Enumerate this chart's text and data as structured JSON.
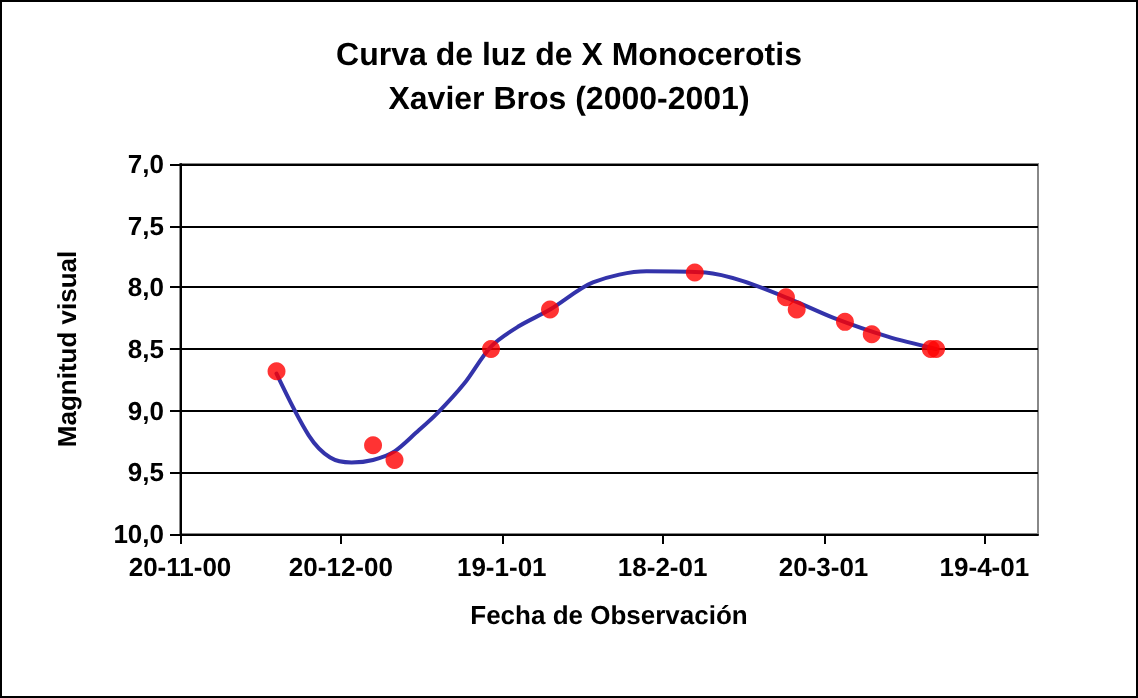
{
  "chart_data": {
    "type": "scatter",
    "title": "Curva de luz de X Monocerotis",
    "subtitle": "Xavier Bros (2000-2001)",
    "xlabel": "Fecha de Observación",
    "ylabel": "Magnitud visual",
    "xlim": [
      "2000-11-20",
      "2001-04-29"
    ],
    "xticks": [
      {
        "value": "2000-11-20",
        "label": "20-11-00"
      },
      {
        "value": "2000-12-20",
        "label": "20-12-00"
      },
      {
        "value": "2001-01-19",
        "label": "19-1-01"
      },
      {
        "value": "2001-02-18",
        "label": "18-2-01"
      },
      {
        "value": "2001-03-20",
        "label": "20-3-01"
      },
      {
        "value": "2001-04-19",
        "label": "19-4-01"
      }
    ],
    "ylim": [
      10,
      7
    ],
    "yticks": [
      {
        "value": 7,
        "label": "7,0"
      },
      {
        "value": 7.5,
        "label": "7,5"
      },
      {
        "value": 8,
        "label": "8,0"
      },
      {
        "value": 8.5,
        "label": "8,5"
      },
      {
        "value": 9,
        "label": "9,0"
      },
      {
        "value": 9.5,
        "label": "9,5"
      },
      {
        "value": 10,
        "label": "10,0"
      }
    ],
    "grid": "y",
    "series": [
      {
        "color": "#ff0000",
        "marker": "circle",
        "x": [
          "2000-12-08",
          "2000-12-26",
          "2000-12-30",
          "2001-01-17",
          "2001-01-28",
          "2001-02-24",
          "2001-03-13",
          "2001-03-15",
          "2001-03-24",
          "2001-03-29",
          "2001-04-09",
          "2001-04-10"
        ],
        "values": [
          8.68,
          9.28,
          9.4,
          8.5,
          8.18,
          7.88,
          8.08,
          8.18,
          8.28,
          8.38,
          8.5,
          8.5
        ]
      },
      {
        "type": "line",
        "color": "#3333aa",
        "marker": "none",
        "line_style": "solid",
        "x": [
          "2000-12-08",
          "2000-12-14",
          "2000-12-18",
          "2000-12-22",
          "2000-12-26",
          "2000-12-30",
          "2001-01-03",
          "2001-01-07",
          "2001-01-12",
          "2001-01-17",
          "2001-01-22",
          "2001-01-28",
          "2001-02-05",
          "2001-02-15",
          "2001-02-26",
          "2001-03-05",
          "2001-03-14",
          "2001-03-22",
          "2001-04-01",
          "2001-04-10"
        ],
        "values": [
          8.7,
          9.2,
          9.38,
          9.42,
          9.4,
          9.33,
          9.18,
          9.02,
          8.78,
          8.48,
          8.32,
          8.18,
          7.96,
          7.87,
          7.88,
          7.95,
          8.1,
          8.25,
          8.4,
          8.5
        ]
      }
    ]
  }
}
